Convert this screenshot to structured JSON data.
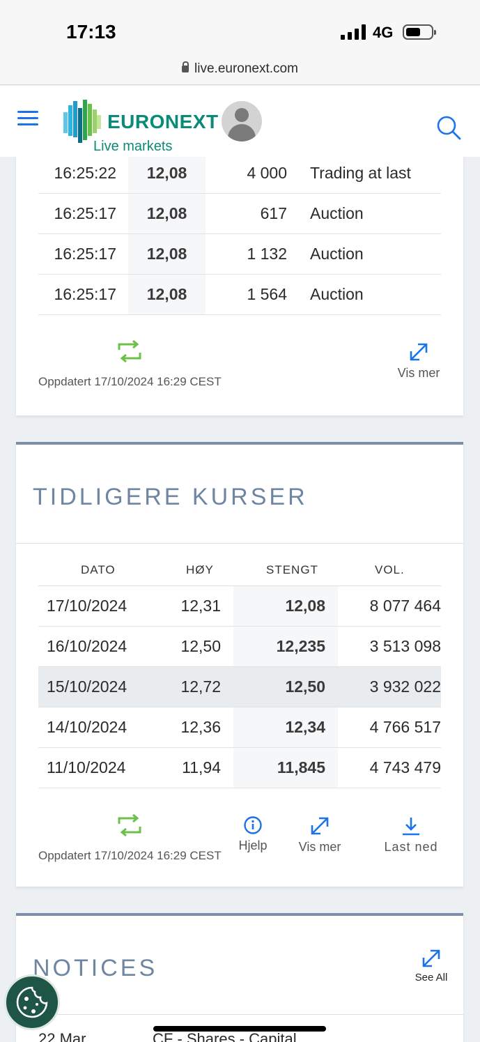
{
  "status": {
    "time": "17:13",
    "network": "4G"
  },
  "browser": {
    "url": "live.euronext.com"
  },
  "header": {
    "brand": "EURONEXT",
    "subtitle": "Live markets"
  },
  "trades": {
    "rows": [
      {
        "time": "16:25:22",
        "price": "12,08",
        "volume": "4 000",
        "type": "Trading at last"
      },
      {
        "time": "16:25:17",
        "price": "12,08",
        "volume": "617",
        "type": "Auction"
      },
      {
        "time": "16:25:17",
        "price": "12,08",
        "volume": "1 132",
        "type": "Auction"
      },
      {
        "time": "16:25:17",
        "price": "12,08",
        "volume": "1 564",
        "type": "Auction"
      }
    ],
    "updated": "Oppdatert 17/10/2024 16:29 CEST",
    "see_more": "Vis mer"
  },
  "history": {
    "title": "TIDLIGERE KURSER",
    "columns": {
      "date": "DATO",
      "high": "HØY",
      "close": "STENGT",
      "volume": "VOL."
    },
    "rows": [
      {
        "date": "17/10/2024",
        "high": "12,31",
        "close": "12,08",
        "volume": "8 077 464"
      },
      {
        "date": "16/10/2024",
        "high": "12,50",
        "close": "12,235",
        "volume": "3 513 098"
      },
      {
        "date": "15/10/2024",
        "high": "12,72",
        "close": "12,50",
        "volume": "3 932 022"
      },
      {
        "date": "14/10/2024",
        "high": "12,36",
        "close": "12,34",
        "volume": "4 766 517"
      },
      {
        "date": "11/10/2024",
        "high": "11,94",
        "close": "11,845",
        "volume": "4 743 479"
      }
    ],
    "updated": "Oppdatert 17/10/2024 16:29 CEST",
    "help": "Hjelp",
    "see_more": "Vis mer",
    "download": "Last ned"
  },
  "notices": {
    "title": "NOTICES",
    "see_all": "See All",
    "first_date": "22 Mar",
    "first_title": "CF - Shares - Capital"
  },
  "colors": {
    "accent": "#1a73e8",
    "brand": "#0b8a78",
    "refresh": "#6cc04a",
    "section": "#6f86a2"
  }
}
